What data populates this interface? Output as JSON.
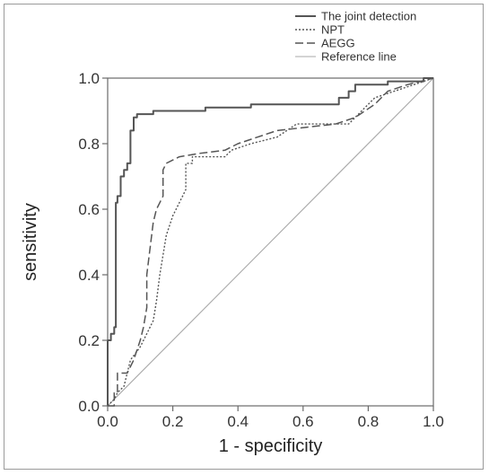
{
  "chart_data": {
    "type": "line",
    "xlabel": "1 - specificity",
    "ylabel": "sensitivity",
    "xlim": [
      0,
      1
    ],
    "ylim": [
      0,
      1
    ],
    "xticks": [
      "0.0",
      "0.2",
      "0.4",
      "0.6",
      "0.8",
      "1.0"
    ],
    "yticks": [
      "0.0",
      "0.2",
      "0.4",
      "0.6",
      "0.8",
      "1.0"
    ],
    "legend_position": "top-right, above plot",
    "series": [
      {
        "name": "The joint detection",
        "style": "solid",
        "color": "#555555",
        "points": [
          [
            0,
            0
          ],
          [
            0,
            0.2
          ],
          [
            0.01,
            0.2
          ],
          [
            0.01,
            0.22
          ],
          [
            0.02,
            0.22
          ],
          [
            0.02,
            0.24
          ],
          [
            0.025,
            0.24
          ],
          [
            0.025,
            0.62
          ],
          [
            0.03,
            0.62
          ],
          [
            0.03,
            0.64
          ],
          [
            0.04,
            0.64
          ],
          [
            0.04,
            0.7
          ],
          [
            0.05,
            0.7
          ],
          [
            0.05,
            0.72
          ],
          [
            0.06,
            0.72
          ],
          [
            0.06,
            0.74
          ],
          [
            0.07,
            0.74
          ],
          [
            0.07,
            0.84
          ],
          [
            0.08,
            0.84
          ],
          [
            0.08,
            0.88
          ],
          [
            0.09,
            0.88
          ],
          [
            0.09,
            0.89
          ],
          [
            0.14,
            0.89
          ],
          [
            0.14,
            0.9
          ],
          [
            0.3,
            0.9
          ],
          [
            0.3,
            0.91
          ],
          [
            0.44,
            0.91
          ],
          [
            0.44,
            0.92
          ],
          [
            0.71,
            0.92
          ],
          [
            0.71,
            0.94
          ],
          [
            0.74,
            0.94
          ],
          [
            0.74,
            0.96
          ],
          [
            0.76,
            0.96
          ],
          [
            0.76,
            0.98
          ],
          [
            0.86,
            0.98
          ],
          [
            0.86,
            0.99
          ],
          [
            0.97,
            0.99
          ],
          [
            0.97,
            1
          ],
          [
            1,
            1
          ]
        ]
      },
      {
        "name": "NPT",
        "style": "dotted",
        "color": "#555555",
        "points": [
          [
            0,
            0
          ],
          [
            0.02,
            0.02
          ],
          [
            0.03,
            0.04
          ],
          [
            0.05,
            0.06
          ],
          [
            0.06,
            0.1
          ],
          [
            0.07,
            0.14
          ],
          [
            0.1,
            0.18
          ],
          [
            0.12,
            0.22
          ],
          [
            0.14,
            0.26
          ],
          [
            0.15,
            0.32
          ],
          [
            0.16,
            0.4
          ],
          [
            0.17,
            0.46
          ],
          [
            0.18,
            0.52
          ],
          [
            0.2,
            0.58
          ],
          [
            0.22,
            0.62
          ],
          [
            0.24,
            0.66
          ],
          [
            0.24,
            0.74
          ],
          [
            0.26,
            0.74
          ],
          [
            0.26,
            0.76
          ],
          [
            0.36,
            0.76
          ],
          [
            0.38,
            0.78
          ],
          [
            0.44,
            0.8
          ],
          [
            0.52,
            0.82
          ],
          [
            0.55,
            0.84
          ],
          [
            0.58,
            0.86
          ],
          [
            0.74,
            0.86
          ],
          [
            0.78,
            0.9
          ],
          [
            0.82,
            0.94
          ],
          [
            0.88,
            0.96
          ],
          [
            0.94,
            0.98
          ],
          [
            1,
            1
          ]
        ]
      },
      {
        "name": "AEGG",
        "style": "dashed",
        "color": "#555555",
        "points": [
          [
            0,
            0
          ],
          [
            0.02,
            0
          ],
          [
            0.02,
            0.04
          ],
          [
            0.03,
            0.04
          ],
          [
            0.03,
            0.1
          ],
          [
            0.06,
            0.1
          ],
          [
            0.08,
            0.14
          ],
          [
            0.1,
            0.2
          ],
          [
            0.11,
            0.24
          ],
          [
            0.12,
            0.3
          ],
          [
            0.12,
            0.4
          ],
          [
            0.13,
            0.48
          ],
          [
            0.14,
            0.56
          ],
          [
            0.15,
            0.6
          ],
          [
            0.16,
            0.62
          ],
          [
            0.17,
            0.64
          ],
          [
            0.17,
            0.72
          ],
          [
            0.18,
            0.74
          ],
          [
            0.22,
            0.76
          ],
          [
            0.28,
            0.77
          ],
          [
            0.36,
            0.78
          ],
          [
            0.4,
            0.8
          ],
          [
            0.46,
            0.82
          ],
          [
            0.52,
            0.84
          ],
          [
            0.7,
            0.86
          ],
          [
            0.76,
            0.88
          ],
          [
            0.82,
            0.92
          ],
          [
            0.86,
            0.96
          ],
          [
            0.92,
            0.98
          ],
          [
            1,
            1
          ]
        ]
      },
      {
        "name": "Reference line",
        "style": "solid-thin",
        "color": "#a8a8a8",
        "points": [
          [
            0,
            0
          ],
          [
            1,
            1
          ]
        ]
      }
    ]
  }
}
